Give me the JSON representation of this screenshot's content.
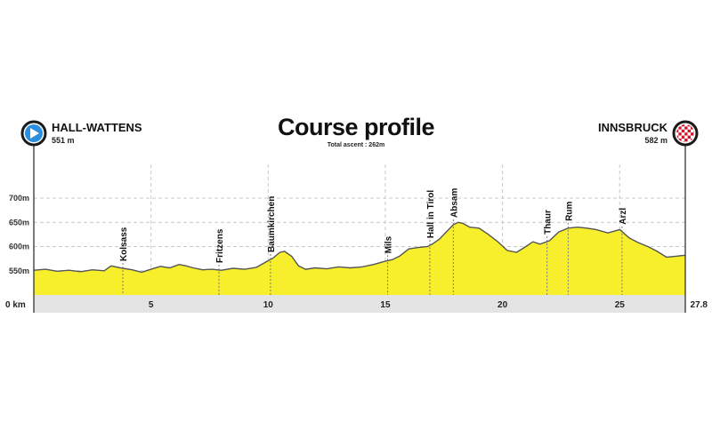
{
  "chart_data": {
    "type": "area",
    "title": "Course profile",
    "subtitle": "Total ascent : 262m",
    "start": {
      "name": "HALL-WATTENS",
      "elevation": "551 m"
    },
    "finish": {
      "name": "INNSBRUCK",
      "elevation": "582 m"
    },
    "xlim": [
      0,
      27.8
    ],
    "ylim": [
      500,
      750
    ],
    "x_ticks": [
      0,
      5,
      10,
      15,
      20,
      25,
      27.8
    ],
    "x_tick_labels": [
      "0 km",
      "5",
      "10",
      "15",
      "20",
      "25",
      "27.8"
    ],
    "y_ticks": [
      550,
      600,
      650,
      700
    ],
    "y_tick_labels": [
      "550m",
      "600m",
      "650m",
      "700m"
    ],
    "grid": true,
    "fill_color": "#f7ef2b",
    "line_color": "#555555",
    "profile": {
      "x": [
        0,
        0.5,
        1,
        1.5,
        2,
        2.5,
        3,
        3.3,
        3.8,
        4.2,
        4.6,
        5,
        5.4,
        5.8,
        6.2,
        6.5,
        6.8,
        7.2,
        7.6,
        8,
        8.5,
        9,
        9.5,
        9.9,
        10.2,
        10.5,
        10.7,
        11,
        11.3,
        11.6,
        12,
        12.5,
        13,
        13.5,
        14,
        14.5,
        15,
        15.3,
        15.6,
        16,
        16.4,
        16.8,
        17,
        17.3,
        17.6,
        17.9,
        18.1,
        18.3,
        18.6,
        19,
        19.4,
        19.8,
        20.2,
        20.6,
        21,
        21.3,
        21.6,
        22,
        22.4,
        22.8,
        23.2,
        23.6,
        24,
        24.5,
        25,
        25.4,
        25.8,
        26.2,
        26.6,
        27,
        27.4,
        27.8
      ],
      "y": [
        551,
        553,
        549,
        551,
        548,
        552,
        550,
        560,
        555,
        552,
        547,
        553,
        559,
        556,
        563,
        560,
        556,
        552,
        553,
        551,
        555,
        553,
        557,
        568,
        576,
        588,
        590,
        580,
        560,
        553,
        556,
        554,
        558,
        556,
        558,
        563,
        570,
        573,
        580,
        595,
        598,
        600,
        605,
        615,
        630,
        645,
        650,
        648,
        640,
        638,
        625,
        610,
        592,
        588,
        600,
        610,
        605,
        612,
        630,
        638,
        640,
        638,
        635,
        628,
        635,
        618,
        608,
        600,
        590,
        578,
        580,
        582
      ]
    },
    "places": [
      {
        "name": "Kolsass",
        "km": 3.8
      },
      {
        "name": "Fritzens",
        "km": 7.9
      },
      {
        "name": "Baumkirchen",
        "km": 10.1
      },
      {
        "name": "Mils",
        "km": 15.1
      },
      {
        "name": "Hall in Tirol",
        "km": 16.9
      },
      {
        "name": "Absam",
        "km": 17.9
      },
      {
        "name": "Thaur",
        "km": 21.9
      },
      {
        "name": "Rum",
        "km": 22.8
      },
      {
        "name": "Arzl",
        "km": 25.1
      }
    ]
  }
}
